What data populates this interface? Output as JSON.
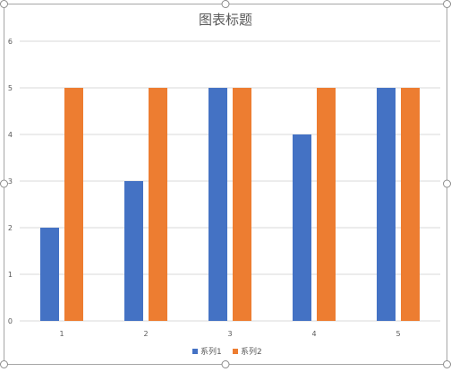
{
  "colors": {
    "series1": "#4472C4",
    "series2": "#ED7D31",
    "grid": "#D9D9D9",
    "axis_text": "#595959",
    "title_text": "#595959",
    "frame": "#A6A6A6",
    "handle_fill": "#FFFFFF",
    "handle_stroke": "#8C8C8C"
  },
  "chart_data": {
    "type": "bar",
    "title": "图表标题",
    "xlabel": "",
    "ylabel": "",
    "categories": [
      "1",
      "2",
      "3",
      "4",
      "5"
    ],
    "series": [
      {
        "name": "系列1",
        "values": [
          2,
          3,
          5,
          4,
          5
        ]
      },
      {
        "name": "系列2",
        "values": [
          5,
          5,
          5,
          5,
          5
        ]
      }
    ],
    "ylim": [
      0,
      6
    ],
    "yticks": [
      0,
      1,
      2,
      3,
      4,
      5,
      6
    ],
    "grid": true,
    "legend": "bottom"
  }
}
